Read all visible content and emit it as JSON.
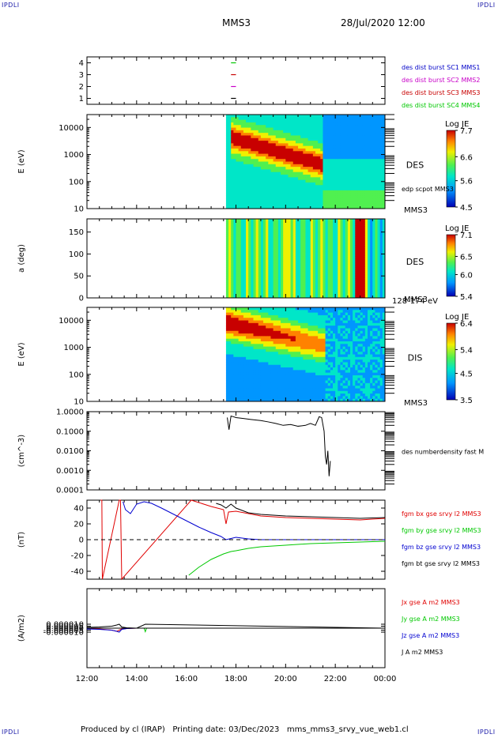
{
  "corners": {
    "tl": "IPDLI",
    "tr": "IPDLI",
    "bl": "IPDLI",
    "br": "IPDLI"
  },
  "header": {
    "title": "MMS3",
    "date": "28/Jul/2020 12:00"
  },
  "footer": {
    "text": "Produced by cl (IRAP)   Printing date: 03/Dec/2023   mms_mms3_srvy_vue_web1.cl"
  },
  "colors": {
    "mms1": "#0000c8",
    "mms2": "#c800c8",
    "mms3": "#c80000",
    "mms4": "#00c800"
  },
  "chart_data": [
    {
      "type": "scatter",
      "id": "burst",
      "x_range": [
        12,
        24
      ],
      "ylim": [
        0.5,
        4.5
      ],
      "yticks": [
        "1",
        "2",
        "3",
        "4"
      ],
      "legend": [
        "des dist burst SC1 MMS1",
        "des dist burst SC2 MMS2",
        "des dist burst SC3 MMS3",
        "des dist burst SC4 MMS4"
      ],
      "segments": [
        {
          "name": "des dist burst SC1 MMS1",
          "y": 1,
          "x": [
            17.8,
            18.0
          ]
        },
        {
          "name": "des dist burst SC2 MMS2",
          "y": 2,
          "x": [
            17.8,
            18.0
          ]
        },
        {
          "name": "des dist burst SC3 MMS3",
          "y": 3,
          "x": [
            17.8,
            18.0
          ]
        },
        {
          "name": "des dist burst SC4 MMS4",
          "y": 4,
          "x": [
            17.8,
            18.0
          ]
        }
      ]
    },
    {
      "type": "heatmap",
      "id": "des_energy",
      "ylabel": "E (eV)",
      "log": true,
      "ylim": [
        10,
        30000
      ],
      "yticks": [
        "10",
        "100",
        "1000",
        "10000"
      ],
      "side_label": "DES",
      "overlay_label": "edp scpot MMS3",
      "bottom_label": "MMS3",
      "colorbar": {
        "title": "Log JE",
        "ticks": [
          "7.7",
          "6.6",
          "5.6",
          "4.5"
        ],
        "range": [
          4.5,
          7.7
        ]
      },
      "data_start": 17.6,
      "data_end": 24.0
    },
    {
      "type": "heatmap",
      "id": "des_pitch",
      "ylabel": "a (deg)",
      "ylim": [
        0,
        180
      ],
      "yticks": [
        "0",
        "50",
        "100",
        "150"
      ],
      "side_label": "DES",
      "bottom_label": "MMS3",
      "energy_label": "128-174 eV",
      "colorbar": {
        "title": "Log JE",
        "ticks": [
          "7.1",
          "6.5",
          "6.0",
          "5.4"
        ],
        "range": [
          5.4,
          7.1
        ]
      },
      "data_start": 17.6,
      "data_end": 24.0
    },
    {
      "type": "heatmap",
      "id": "dis_energy",
      "ylabel": "E (eV)",
      "log": true,
      "ylim": [
        10,
        30000
      ],
      "yticks": [
        "10",
        "100",
        "1000",
        "10000"
      ],
      "side_label": "DIS",
      "bottom_label": "MMS3",
      "colorbar": {
        "title": "Log JE",
        "ticks": [
          "6.4",
          "5.4",
          "4.5",
          "3.5"
        ],
        "range": [
          3.5,
          6.4
        ]
      },
      "data_start": 17.6,
      "data_end": 24.0
    },
    {
      "type": "line",
      "id": "density",
      "ylabel": "(cm^-3)",
      "log": true,
      "ylim": [
        0.0001,
        1.0
      ],
      "yticks": [
        "0.0001",
        "0.0010",
        "0.0100",
        "0.1000",
        "1.0000"
      ],
      "legend": [
        "des numberdensity fast M"
      ],
      "series": [
        {
          "name": "des numberdensity fast M",
          "x": [
            17.65,
            17.72,
            17.8,
            17.9,
            18.0,
            18.3,
            18.6,
            19.0,
            19.3,
            19.6,
            19.9,
            20.2,
            20.5,
            20.8,
            21.0,
            21.2,
            21.35,
            21.45,
            21.55,
            21.6,
            21.65,
            21.7,
            21.75,
            21.8
          ],
          "y": [
            0.5,
            0.12,
            0.6,
            0.55,
            0.5,
            0.45,
            0.4,
            0.35,
            0.3,
            0.25,
            0.2,
            0.22,
            0.18,
            0.2,
            0.25,
            0.2,
            0.55,
            0.5,
            0.1,
            0.005,
            0.002,
            0.01,
            0.0005,
            0.003
          ]
        }
      ]
    },
    {
      "type": "line",
      "id": "bfield",
      "ylabel": "(nT)",
      "ylim": [
        -50,
        50
      ],
      "yticks": [
        "-40",
        "-20",
        "0",
        "20",
        "40"
      ],
      "legend": [
        "fgm bx gse srvy l2 MMS3",
        "fgm by gse srvy l2 MMS3",
        "fgm bz gse srvy l2 MMS3",
        "fgm bt gse srvy l2 MMS3"
      ],
      "series": [
        {
          "name": "fgm bx gse srvy l2 MMS3",
          "x": [
            12.55,
            12.6,
            12.62,
            13.3,
            13.35,
            13.4,
            16.2,
            17.0,
            17.5,
            17.6,
            17.7,
            18.0,
            19.0,
            20.0,
            21.0,
            22.0,
            23.0,
            24.0
          ],
          "y": [
            50,
            50,
            -50,
            50,
            50,
            -50,
            50,
            42,
            38,
            20,
            35,
            36,
            30,
            28,
            27,
            26,
            25,
            27
          ]
        },
        {
          "name": "fgm by gse srvy l2 MMS3",
          "x": [
            16.1,
            16.5,
            17.0,
            17.5,
            17.8,
            18.0,
            18.5,
            19.0,
            20.0,
            21.0,
            22.0,
            23.0,
            24.0
          ],
          "y": [
            -45,
            -35,
            -25,
            -18,
            -15,
            -14,
            -11,
            -9,
            -7,
            -5,
            -4,
            -3,
            -2
          ]
        },
        {
          "name": "fgm bz gse srvy l2 MMS3",
          "x": [
            13.45,
            13.55,
            13.75,
            14.0,
            14.3,
            14.6,
            15.0,
            15.5,
            16.0,
            16.5,
            17.0,
            17.4,
            17.6,
            18.0,
            18.5,
            19.0,
            20.0,
            21.0,
            22.0,
            23.0,
            24.0
          ],
          "y": [
            48,
            38,
            33,
            45,
            48,
            46,
            40,
            32,
            24,
            16,
            9,
            4,
            0,
            3,
            1,
            0,
            0,
            0,
            0,
            0,
            0
          ]
        },
        {
          "name": "fgm bt gse srvy l2 MMS3",
          "x": [
            17.2,
            17.4,
            17.6,
            17.8,
            18.0,
            18.5,
            19.0,
            20.0,
            21.0,
            22.0,
            23.0,
            24.0
          ],
          "y": [
            46,
            44,
            40,
            45,
            40,
            34,
            32,
            30,
            29,
            28,
            27,
            28
          ]
        }
      ]
    },
    {
      "type": "line",
      "id": "current",
      "ylabel": "(A/m2)",
      "ylim": [
        -0.0001,
        0.0001
      ],
      "yticks": [
        "-0.000010",
        "-0.000005",
        "0.000000",
        "0.000005",
        "0.000010"
      ],
      "legend": [
        "Jx gse A m2 MMS3",
        "Jy gse A m2 MMS3",
        "Jz gse A m2 MMS3",
        "J A m2 MMS3"
      ],
      "series": [
        {
          "name": "Jx gse A m2 MMS3",
          "x": [
            12.0,
            12.5,
            13.0,
            13.2,
            13.4,
            13.6,
            14.0,
            24.0
          ],
          "y": [
            0.0,
            -2e-06,
            -5e-06,
            -8e-06,
            -2e-06,
            -1e-06,
            0.0,
            0.0
          ]
        },
        {
          "name": "Jy gse A m2 MMS3",
          "x": [
            12.0,
            14.3,
            14.35,
            14.4,
            24.0
          ],
          "y": [
            0.0,
            0.0,
            -9e-06,
            0.0,
            0.0
          ]
        },
        {
          "name": "Jz gse A m2 MMS3",
          "x": [
            12.0,
            12.5,
            13.0,
            13.2,
            13.3,
            13.4,
            13.6,
            14.0,
            24.0
          ],
          "y": [
            -2e-06,
            -3e-06,
            -5e-06,
            -8e-06,
            -1e-05,
            -3e-06,
            -1e-06,
            0.0,
            0.0
          ]
        },
        {
          "name": "J A m2 MMS3",
          "x": [
            12.0,
            12.5,
            13.0,
            13.2,
            13.3,
            13.4,
            13.6,
            14.0,
            14.35,
            24.0
          ],
          "y": [
            2e-06,
            3e-06,
            5e-06,
            8e-06,
            1e-05,
            3e-06,
            1e-06,
            0.0,
            1e-05,
            0.0
          ]
        }
      ]
    }
  ],
  "xaxis": {
    "ticks": [
      "12:00",
      "14:00",
      "16:00",
      "18:00",
      "20:00",
      "22:00",
      "00:00"
    ],
    "range": [
      12,
      24
    ]
  }
}
